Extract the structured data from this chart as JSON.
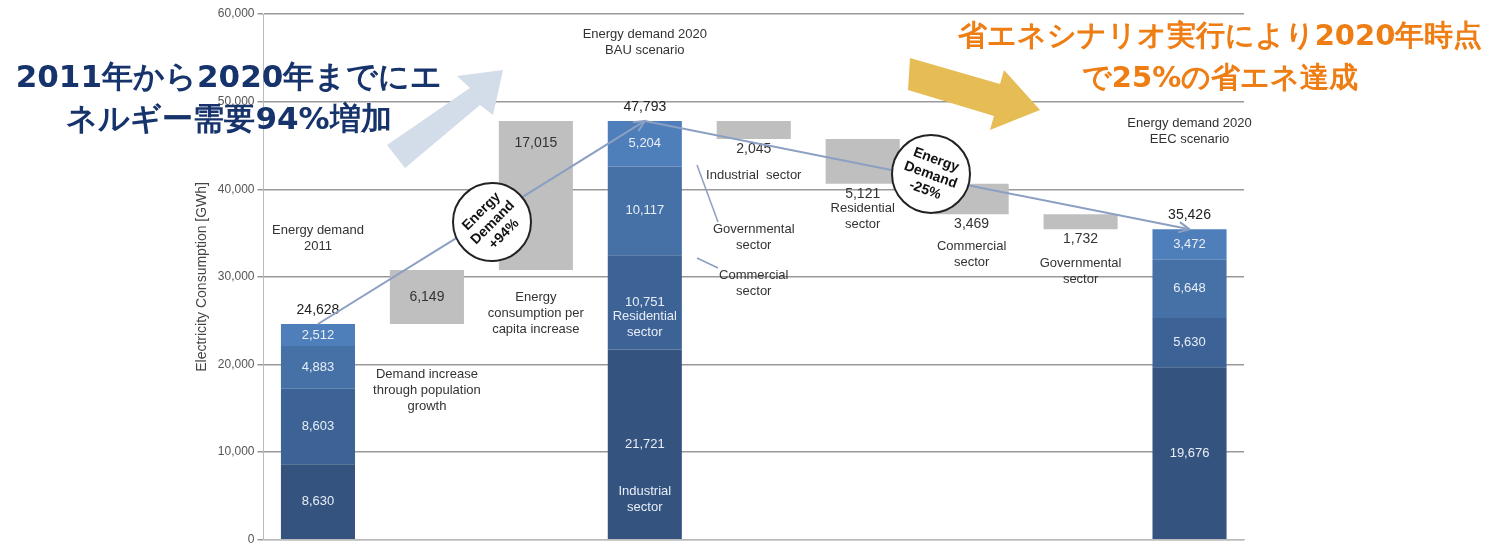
{
  "chart_data": {
    "type": "bar",
    "stacked": true,
    "ylabel": "Electricity Consumption [GWh]",
    "categories": [
      null,
      null,
      null,
      null,
      null,
      null,
      null,
      null,
      null
    ],
    "ylim": [
      0,
      60000
    ],
    "yticks": [
      0,
      {
        "value": 10000,
        "label": "10,000"
      },
      {
        "value": 20000,
        "label": "20,000"
      },
      {
        "value": 30000,
        "label": "30,000"
      },
      {
        "value": 40000,
        "label": "40,000"
      },
      {
        "value": 50000,
        "label": "50,000"
      },
      {
        "value": 60000,
        "label": "60,000"
      }
    ],
    "grid": "y",
    "legend": false,
    "series": [
      {
        "color": "#34547f",
        "values": [
          8630,
          null,
          null,
          21721,
          null,
          null,
          null,
          null,
          19676
        ],
        "value_labels": [
          "8,630",
          null,
          null,
          "21,721",
          null,
          null,
          null,
          null,
          "19,676"
        ]
      },
      {
        "color": "#3d6396",
        "values": [
          8603,
          null,
          null,
          10751,
          null,
          null,
          null,
          null,
          5630
        ],
        "value_labels": [
          "8,603",
          null,
          null,
          "10,751",
          null,
          null,
          null,
          null,
          "5,630"
        ]
      },
      {
        "color": "#4571a6",
        "values": [
          4883,
          null,
          null,
          10117,
          null,
          null,
          null,
          null,
          6648
        ],
        "value_labels": [
          "4,883",
          null,
          null,
          "10,117",
          null,
          null,
          null,
          null,
          "6,648"
        ]
      },
      {
        "color": "#4f7fba",
        "values": [
          2512,
          null,
          null,
          5204,
          null,
          null,
          null,
          null,
          3472
        ],
        "value_labels": [
          "2,512",
          null,
          null,
          "5,204",
          null,
          null,
          null,
          null,
          "3,472"
        ]
      },
      {
        "color": "#bfbfbf",
        "values": [
          null,
          6149,
          17015,
          null,
          2045,
          5121,
          3469,
          1732,
          null
        ],
        "base": [
          null,
          24628,
          30777,
          null,
          45748,
          40627,
          37158,
          35426,
          null
        ],
        "value_labels": [
          null,
          "6,149",
          "17,015",
          null,
          "2,045",
          "5,121",
          "3,469",
          "1,732",
          null
        ]
      }
    ],
    "totals": [
      "24,628",
      null,
      null,
      "47,793",
      null,
      null,
      null,
      null,
      "35,426"
    ],
    "annotations": [
      "2011年から2020年までにエネルギー需要94%増加",
      "省エネシナリオ実行により2020年時点で25%の省エネ達成",
      "Energy demand 2011",
      "Demand increase through population growth",
      "Energy consumption per capita increase",
      "Energy demand 2020 BAU scenario",
      "Residential sector",
      "Industrial sector",
      "Governmental sector",
      "Commercial sector",
      "Industrial  sector",
      "Residential sector",
      "Commercial sector",
      "Governmental sector",
      "Energy demand 2020 EEC scenario",
      "Energy Demand +94%",
      "Energy Demand -25%"
    ]
  }
}
